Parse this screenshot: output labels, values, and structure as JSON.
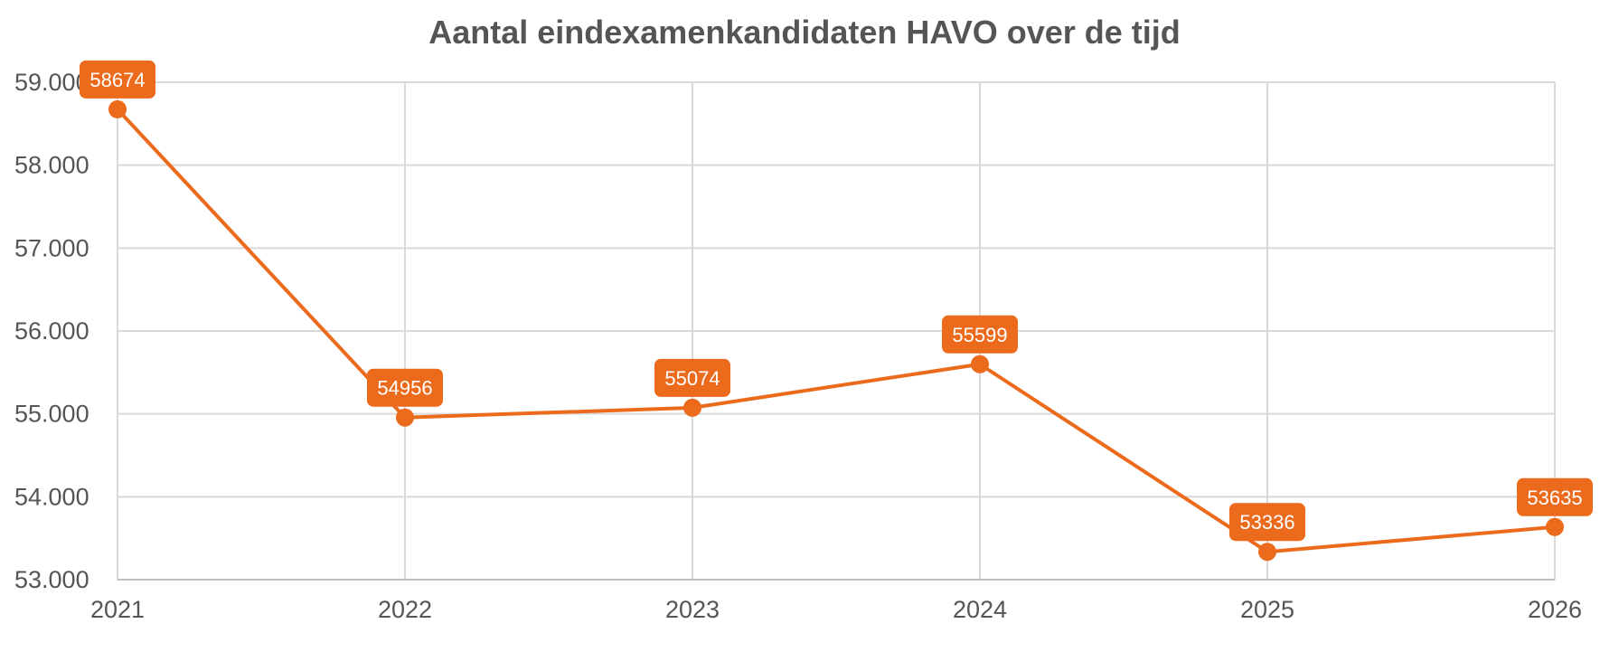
{
  "chart_data": {
    "type": "line",
    "title": "Aantal eindexamenkandidaten HAVO over de tijd",
    "xlabel": "",
    "ylabel": "",
    "categories": [
      "2021",
      "2022",
      "2023",
      "2024",
      "2025",
      "2026"
    ],
    "series": [
      {
        "values": [
          58674,
          54956,
          55074,
          55599,
          53336,
          53635
        ],
        "data_labels": [
          "58674",
          "54956",
          "55074",
          "55599",
          "53336",
          "53635"
        ]
      }
    ],
    "ylim": [
      53000,
      59000
    ],
    "yticks": [
      53000,
      54000,
      55000,
      56000,
      57000,
      58000,
      59000
    ],
    "ytick_labels": [
      "53.000",
      "54.000",
      "55.000",
      "56.000",
      "57.000",
      "58.000",
      "59.000"
    ],
    "grid": true,
    "legend": "none",
    "colors": {
      "line": "#ec6a1c",
      "label_bg": "#ec6a1c",
      "grid": "#d9d9d9",
      "text": "#555555"
    }
  }
}
